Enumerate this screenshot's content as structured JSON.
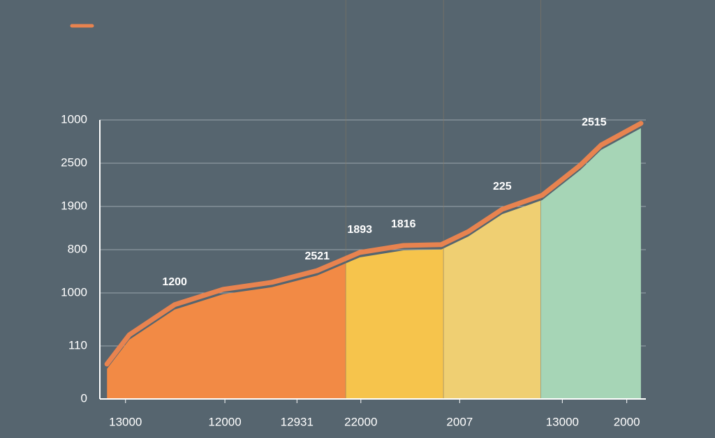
{
  "chart_data": {
    "type": "area",
    "x": [
      1.3,
      5.4,
      13.7,
      22.6,
      31.5,
      39.8,
      47.6,
      55.6,
      62.5,
      67.5,
      73.7,
      81.0,
      88.0,
      91.8,
      99.1
    ],
    "series": [
      {
        "color": "#e8834f",
        "values": [
          12.5,
          23,
          33.8,
          39.3,
          41.8,
          46,
          52.5,
          55,
          55.3,
          60,
          68,
          73,
          83.8,
          91,
          98.8
        ]
      }
    ],
    "bands": [
      {
        "xlim": [
          1.3,
          45.0
        ],
        "color": "#f28a45"
      },
      {
        "xlim": [
          45.0,
          62.9
        ],
        "color": "#f6c44c"
      },
      {
        "xlim": [
          62.9,
          80.7
        ],
        "color": "#efcf72"
      },
      {
        "xlim": [
          80.7,
          99.1
        ],
        "color": "#a6d5b6"
      }
    ],
    "annotations": [
      "1200",
      "2521",
      "1893",
      "1816",
      "225",
      "2515"
    ],
    "xlim": [
      0,
      100
    ],
    "ylim": [
      0,
      100
    ],
    "xticks": [
      {
        "value": 4.7,
        "label": "13000"
      },
      {
        "value": 22.9,
        "label": "12000"
      },
      {
        "value": 36.1,
        "label": "12931"
      },
      {
        "value": 47.8,
        "label": "22000"
      },
      {
        "value": 65.9,
        "label": "2007"
      },
      {
        "value": 84.7,
        "label": "13000"
      },
      {
        "value": 96.5,
        "label": "2000"
      }
    ],
    "yticks": [
      0,
      {
        "value": 19,
        "label": "110"
      },
      {
        "value": 38,
        "label": "1000"
      },
      {
        "value": 53.5,
        "label": "800"
      },
      {
        "value": 69,
        "label": "1900"
      },
      {
        "value": 84.5,
        "label": "2500"
      },
      {
        "value": 100,
        "label": "1000"
      }
    ],
    "grid": true
  }
}
